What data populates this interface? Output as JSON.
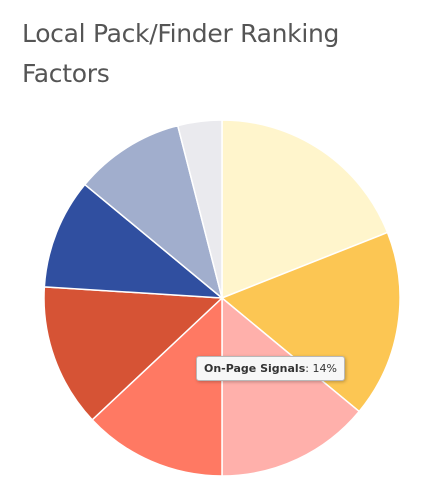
{
  "chart_data": {
    "type": "pie",
    "title": "Local Pack/Finder Ranking Factors",
    "categories": [
      "",
      "",
      "On-Page Signals",
      "",
      "",
      "",
      "",
      ""
    ],
    "values": [
      19,
      17,
      14,
      13,
      13,
      10,
      10,
      4
    ],
    "colors": [
      "#fff5cc",
      "#fcc653",
      "#ffb0ab",
      "#ff7963",
      "#d65335",
      "#304fa0",
      "#a1aecd",
      "#eaeaee"
    ],
    "tooltip": {
      "label": "On-Page Signals",
      "value": "14%"
    }
  }
}
